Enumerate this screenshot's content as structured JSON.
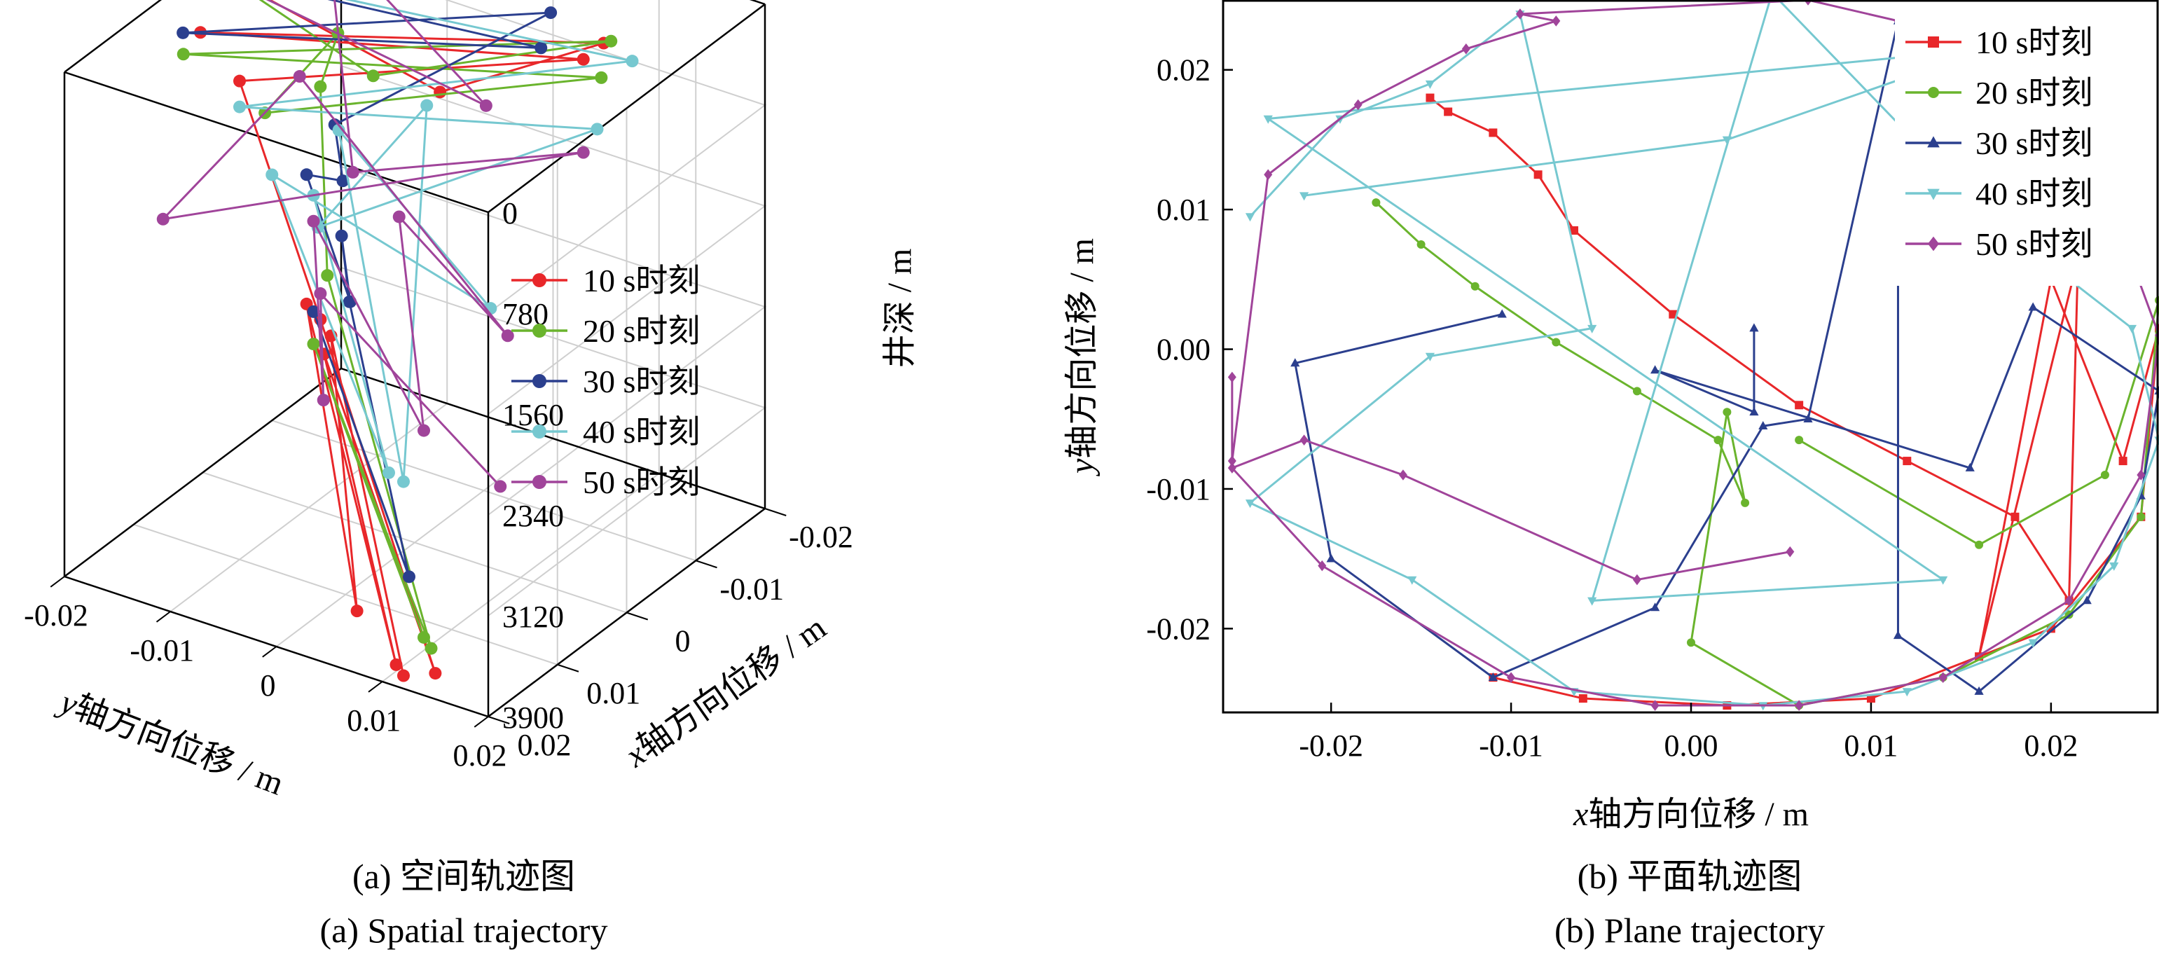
{
  "captions": {
    "a_zh": "(a) 空间轨迹图",
    "a_en": "(a) Spatial trajectory",
    "b_zh": "(b) 平面轨迹图",
    "b_en": "(b) Plane trajectory"
  },
  "legend": [
    "10 s时刻",
    "20 s时刻",
    "30 s时刻",
    "40 s时刻",
    "50 s时刻"
  ],
  "colors": {
    "10s": "#e8272a",
    "20s": "#6ab42d",
    "30s": "#2b3f8e",
    "40s": "#76c8d0",
    "50s": "#a0449a",
    "axis": "#000000",
    "grid": "#cfcfcf"
  },
  "chart_data": [
    {
      "type": "line",
      "subtype": "3d-trajectory",
      "xlabel_var": "y",
      "xlabel": "轴方向位移 / m",
      "ylabel_var": "x",
      "ylabel": "轴方向位移 / m",
      "zlabel": "井深 / m",
      "y_ticks": [
        "-0.02",
        "-0.01",
        "0",
        "0.01",
        "0.02"
      ],
      "x_ticks": [
        "-0.02",
        "-0.01",
        "0",
        "0.01",
        "0.02"
      ],
      "z_ticks": [
        "0",
        "780",
        "1560",
        "2340",
        "3120",
        "3900"
      ],
      "zlim": [
        0,
        3900
      ],
      "z_reversed": true,
      "grid": true,
      "legend_position": "right-middle",
      "series": [
        {
          "name": "10 s时刻",
          "color": "#e8272a",
          "marker": "circle",
          "points": [
            [
              0,
              -0.018,
              0
            ],
            [
              0.004,
              0.005,
              120
            ],
            [
              -0.012,
              0.01,
              250
            ],
            [
              0.008,
              -0.015,
              40
            ],
            [
              -0.006,
              0.012,
              80
            ],
            [
              0.01,
              -0.01,
              200
            ],
            [
              -0.017,
              -0.02,
              3400
            ],
            [
              0.02,
              0.015,
              3700
            ],
            [
              -0.016,
              -0.019,
              3600
            ],
            [
              0.018,
              0.01,
              3850
            ],
            [
              -0.015,
              -0.02,
              3200
            ],
            [
              0.016,
              0.005,
              3650
            ],
            [
              -0.017,
              -0.019,
              3500
            ],
            [
              0.02,
              0.012,
              3800
            ]
          ]
        },
        {
          "name": "20 s时刻",
          "color": "#6ab42d",
          "marker": "circle",
          "points": [
            [
              0,
              -0.018,
              0
            ],
            [
              0.006,
              0.0,
              50
            ],
            [
              -0.01,
              0.012,
              100
            ],
            [
              0.012,
              -0.014,
              20
            ],
            [
              -0.004,
              0.015,
              60
            ],
            [
              0.014,
              -0.005,
              150
            ],
            [
              -0.018,
              -0.019,
              1200
            ],
            [
              -0.017,
              -0.02,
              1600
            ],
            [
              -0.018,
              -0.02,
              3100
            ],
            [
              0.016,
              0.012,
              3750
            ],
            [
              -0.016,
              -0.02,
              3550
            ],
            [
              0.014,
              0.01,
              3800
            ]
          ]
        },
        {
          "name": "30 s时刻",
          "color": "#2b3f8e",
          "marker": "circle",
          "points": [
            [
              0,
              -0.018,
              0
            ],
            [
              -0.006,
              0.008,
              100
            ],
            [
              0.009,
              -0.016,
              30
            ],
            [
              -0.012,
              0.005,
              150
            ],
            [
              -0.016,
              -0.018,
              1800
            ],
            [
              -0.008,
              -0.012,
              1750
            ],
            [
              -0.015,
              -0.02,
              2200
            ],
            [
              -0.006,
              -0.01,
              2550
            ],
            [
              -0.017,
              -0.018,
              2700
            ],
            [
              -0.012,
              -0.014,
              2900
            ],
            [
              0.01,
              0.006,
              3600
            ],
            [
              -0.016,
              -0.02,
              3300
            ]
          ]
        },
        {
          "name": "40 s时刻",
          "color": "#76c8d0",
          "marker": "circle",
          "points": [
            [
              0,
              -0.02,
              0
            ],
            [
              -0.01,
              0.014,
              200
            ],
            [
              0.01,
              -0.01,
              400
            ],
            [
              -0.008,
              0.012,
              700
            ],
            [
              0.014,
              0.0,
              900
            ],
            [
              -0.014,
              -0.008,
              1300
            ],
            [
              0.02,
              0.012,
              2300
            ],
            [
              -0.012,
              -0.015,
              1600
            ],
            [
              0.012,
              0.015,
              1200
            ],
            [
              -0.01,
              -0.02,
              2000
            ],
            [
              0.016,
              0.008,
              2500
            ],
            [
              -0.016,
              -0.02,
              2400
            ]
          ]
        },
        {
          "name": "50 s时刻",
          "color": "#a0449a",
          "marker": "circle",
          "points": [
            [
              0,
              -0.02,
              0
            ],
            [
              0.005,
              0.01,
              50
            ],
            [
              -0.015,
              -0.018,
              300
            ],
            [
              0.012,
              0.002,
              500
            ],
            [
              -0.006,
              0.012,
              800
            ],
            [
              0.018,
              -0.012,
              1000
            ],
            [
              -0.014,
              -0.02,
              1400
            ],
            [
              0.008,
              0.014,
              1600
            ],
            [
              -0.01,
              -0.008,
              2000
            ],
            [
              0.014,
              0.01,
              2200
            ],
            [
              -0.016,
              -0.02,
              2600
            ],
            [
              0.004,
              -0.006,
              2800
            ],
            [
              -0.017,
              -0.02,
              3200
            ],
            [
              0.006,
              0.012,
              2900
            ]
          ]
        }
      ]
    },
    {
      "type": "line",
      "subtype": "plane-trajectory",
      "xlabel_var": "x",
      "xlabel": "轴方向位移 / m",
      "ylabel_var": "y",
      "ylabel": "轴方向位移 / m",
      "xlim": [
        -0.026,
        0.026
      ],
      "ylim": [
        -0.026,
        0.025
      ],
      "x_ticks": [
        "-0.02",
        "-0.01",
        "0.00",
        "0.01",
        "0.02"
      ],
      "y_ticks": [
        "-0.02",
        "-0.01",
        "0.00",
        "0.01",
        "0.02"
      ],
      "grid": false,
      "legend_position": "top-right",
      "series": [
        {
          "name": "10 s时刻",
          "color": "#e8272a",
          "marker": "square",
          "points": [
            [
              -0.0145,
              0.018
            ],
            [
              -0.0135,
              0.017
            ],
            [
              -0.011,
              0.0155
            ],
            [
              -0.0085,
              0.0125
            ],
            [
              -0.0065,
              0.0085
            ],
            [
              -0.001,
              0.0025
            ],
            [
              0.006,
              -0.004
            ],
            [
              0.012,
              -0.008
            ],
            [
              0.018,
              -0.012
            ],
            [
              0.021,
              -0.018
            ],
            [
              0.0215,
              0.0065
            ],
            [
              0.016,
              -0.022
            ],
            [
              0.02,
              0.005
            ],
            [
              0.024,
              -0.008
            ],
            [
              0.026,
              0.0015
            ],
            [
              0.025,
              -0.012
            ],
            [
              0.02,
              -0.02
            ],
            [
              0.01,
              -0.025
            ],
            [
              0.002,
              -0.0255
            ],
            [
              -0.006,
              -0.025
            ],
            [
              -0.011,
              -0.0235
            ]
          ]
        },
        {
          "name": "20 s时刻",
          "color": "#6ab42d",
          "marker": "circle",
          "points": [
            [
              -0.0175,
              0.0105
            ],
            [
              -0.015,
              0.0075
            ],
            [
              -0.012,
              0.0045
            ],
            [
              -0.0075,
              0.0005
            ],
            [
              -0.003,
              -0.003
            ],
            [
              0.0015,
              -0.0065
            ],
            [
              0.003,
              -0.011
            ],
            [
              0.002,
              -0.0045
            ],
            [
              0.0,
              -0.021
            ],
            [
              0.006,
              -0.0255
            ],
            [
              0.014,
              -0.0235
            ],
            [
              0.021,
              -0.019
            ],
            [
              0.025,
              -0.012
            ],
            [
              0.026,
              0.0035
            ],
            [
              0.023,
              -0.009
            ],
            [
              0.016,
              -0.014
            ],
            [
              0.006,
              -0.0065
            ]
          ]
        },
        {
          "name": "30 s时刻",
          "color": "#2b3f8e",
          "marker": "triangle",
          "points": [
            [
              -0.0105,
              0.0025
            ],
            [
              -0.022,
              -0.001
            ],
            [
              -0.02,
              -0.015
            ],
            [
              -0.011,
              -0.0235
            ],
            [
              -0.002,
              -0.0185
            ],
            [
              0.004,
              -0.0055
            ],
            [
              0.0065,
              -0.005
            ],
            [
              0.0115,
              0.0235
            ],
            [
              0.0115,
              -0.0205
            ],
            [
              0.016,
              -0.0245
            ],
            [
              0.022,
              -0.018
            ],
            [
              0.025,
              -0.0105
            ],
            [
              0.026,
              -0.003
            ],
            [
              0.019,
              0.003
            ],
            [
              0.0155,
              -0.0085
            ],
            [
              -0.002,
              -0.0015
            ],
            [
              0.0035,
              -0.0045
            ],
            [
              0.0035,
              0.0015
            ]
          ]
        },
        {
          "name": "40 s时刻",
          "color": "#76c8d0",
          "marker": "triangle-down",
          "points": [
            [
              -0.0245,
              0.0095
            ],
            [
              -0.0195,
              0.0165
            ],
            [
              -0.0145,
              0.019
            ],
            [
              -0.0095,
              0.024
            ],
            [
              -0.0055,
              0.0015
            ],
            [
              -0.0145,
              -0.0005
            ],
            [
              -0.0245,
              -0.011
            ],
            [
              -0.0155,
              -0.0165
            ],
            [
              -0.0065,
              -0.0245
            ],
            [
              0.004,
              -0.0255
            ],
            [
              0.012,
              -0.0245
            ],
            [
              0.019,
              -0.021
            ],
            [
              0.0235,
              -0.0155
            ],
            [
              0.026,
              -0.0065
            ],
            [
              0.0245,
              0.0015
            ],
            [
              0.0165,
              0.0095
            ],
            [
              0.0045,
              0.0255
            ],
            [
              -0.0055,
              -0.018
            ],
            [
              0.014,
              -0.0165
            ],
            [
              -0.0235,
              0.0165
            ],
            [
              0.0165,
              0.0215
            ],
            [
              0.002,
              0.015
            ],
            [
              -0.0215,
              0.011
            ]
          ]
        },
        {
          "name": "50 s时刻",
          "color": "#a0449a",
          "marker": "diamond",
          "points": [
            [
              -0.0255,
              -0.002
            ],
            [
              -0.0255,
              -0.008
            ],
            [
              -0.0235,
              0.0125
            ],
            [
              -0.0185,
              0.0175
            ],
            [
              -0.0125,
              0.0215
            ],
            [
              -0.0075,
              0.0235
            ],
            [
              -0.0095,
              0.024
            ],
            [
              0.0065,
              0.025
            ],
            [
              0.0115,
              0.0235
            ],
            [
              0.0195,
              0.015
            ],
            [
              0.024,
              0.008
            ],
            [
              0.026,
              0.001
            ],
            [
              0.025,
              -0.009
            ],
            [
              0.021,
              -0.018
            ],
            [
              0.014,
              -0.0235
            ],
            [
              0.006,
              -0.0255
            ],
            [
              -0.002,
              -0.0255
            ],
            [
              -0.01,
              -0.0235
            ],
            [
              -0.0205,
              -0.0155
            ],
            [
              -0.0255,
              -0.0085
            ],
            [
              -0.0215,
              -0.0065
            ],
            [
              -0.016,
              -0.009
            ],
            [
              -0.003,
              -0.0165
            ],
            [
              0.0055,
              -0.0145
            ]
          ]
        }
      ]
    }
  ]
}
